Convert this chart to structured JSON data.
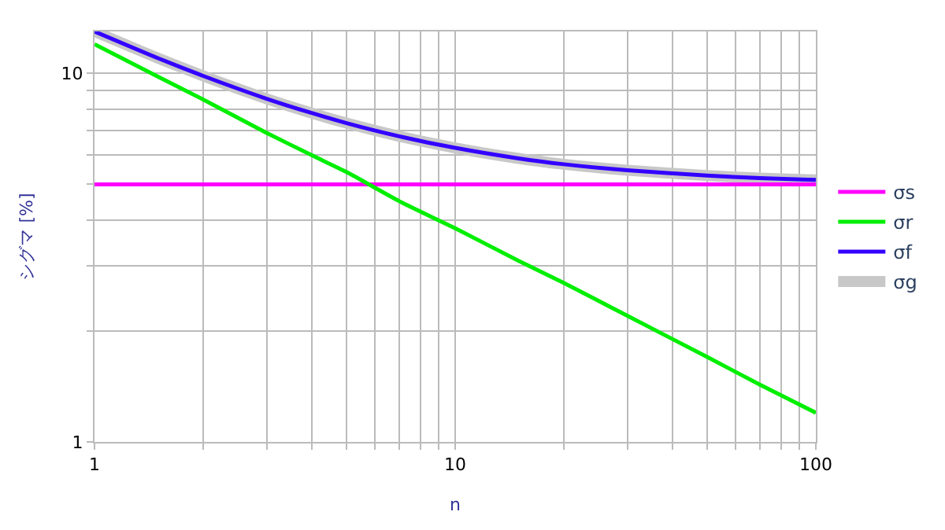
{
  "chart_data": {
    "type": "line",
    "xlabel": "n",
    "ylabel": "シグマ [%]",
    "log": "xy",
    "grid": true,
    "legend": "right",
    "marker": "none",
    "line_style": "solid",
    "x": [
      1,
      1.5,
      2,
      3,
      4,
      5,
      7,
      10,
      15,
      20,
      30,
      50,
      70,
      100
    ],
    "xlim": [
      1,
      100
    ],
    "xticks": [
      1,
      {
        "value": 2,
        "label": null
      },
      {
        "value": 3,
        "label": null
      },
      {
        "value": 4,
        "label": null
      },
      {
        "value": 5,
        "label": null
      },
      {
        "value": 6,
        "label": null
      },
      {
        "value": 7,
        "label": null
      },
      {
        "value": 8,
        "label": null
      },
      {
        "value": 9,
        "label": null
      },
      10,
      {
        "value": 20,
        "label": null
      },
      {
        "value": 30,
        "label": null
      },
      {
        "value": 40,
        "label": null
      },
      {
        "value": 50,
        "label": null
      },
      {
        "value": 60,
        "label": null
      },
      {
        "value": 70,
        "label": null
      },
      {
        "value": 80,
        "label": null
      },
      {
        "value": 90,
        "label": null
      },
      100
    ],
    "ylim": [
      1,
      13
    ],
    "yticks": [
      1,
      {
        "value": 2,
        "label": null
      },
      {
        "value": 3,
        "label": null
      },
      {
        "value": 4,
        "label": null
      },
      {
        "value": 5,
        "label": null
      },
      {
        "value": 6,
        "label": null
      },
      {
        "value": 7,
        "label": null
      },
      {
        "value": 8,
        "label": null
      },
      {
        "value": 9,
        "label": null
      },
      10
    ],
    "series": [
      {
        "name": "σs",
        "color": "#ff00ff",
        "values": [
          5,
          5,
          5,
          5,
          5,
          5,
          5,
          5,
          5,
          5,
          5,
          5,
          5,
          5
        ]
      },
      {
        "name": "σr",
        "color": "#00ee00",
        "values": [
          12,
          9.8,
          8.5,
          6.9,
          6,
          5.4,
          4.5,
          3.8,
          3.1,
          2.7,
          2.2,
          1.7,
          1.43,
          1.2
        ]
      },
      {
        "name": "σf",
        "color": "#3300ff",
        "values": [
          13,
          11,
          9.85,
          8.54,
          7.81,
          7.33,
          6.75,
          6.28,
          5.88,
          5.67,
          5.46,
          5.28,
          5.2,
          5.14
        ]
      },
      {
        "name": "σg",
        "color": "#c8c8c8",
        "values": [
          13,
          11,
          9.85,
          8.54,
          7.81,
          7.33,
          6.75,
          6.28,
          5.88,
          5.67,
          5.46,
          5.28,
          5.2,
          5.14
        ]
      }
    ]
  }
}
